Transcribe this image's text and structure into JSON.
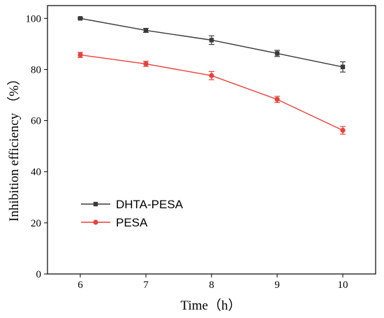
{
  "chart_data": {
    "type": "line",
    "xlabel": "Time（h）",
    "ylabel": "Inhibition efficiency （%）",
    "x": [
      6,
      7,
      8,
      9,
      10
    ],
    "xlim": [
      5.5,
      10.5
    ],
    "ylim": [
      0,
      105
    ],
    "xticks": [
      6,
      7,
      8,
      9,
      10
    ],
    "yticks": [
      0,
      20,
      40,
      60,
      80,
      100
    ],
    "grid": false,
    "legend_position": "lower-left",
    "series": [
      {
        "name": "DHTA-PESA",
        "values": [
          100,
          95.3,
          91.5,
          86.3,
          81.0
        ],
        "errors": [
          0.3,
          0.8,
          1.7,
          1.2,
          2.0
        ],
        "color": "#3a3a3a",
        "marker": "square"
      },
      {
        "name": "PESA",
        "values": [
          85.7,
          82.2,
          77.6,
          68.3,
          56.2
        ],
        "errors": [
          1.0,
          1.0,
          1.6,
          1.2,
          1.5
        ],
        "color": "#e8403a",
        "marker": "circle"
      }
    ]
  }
}
